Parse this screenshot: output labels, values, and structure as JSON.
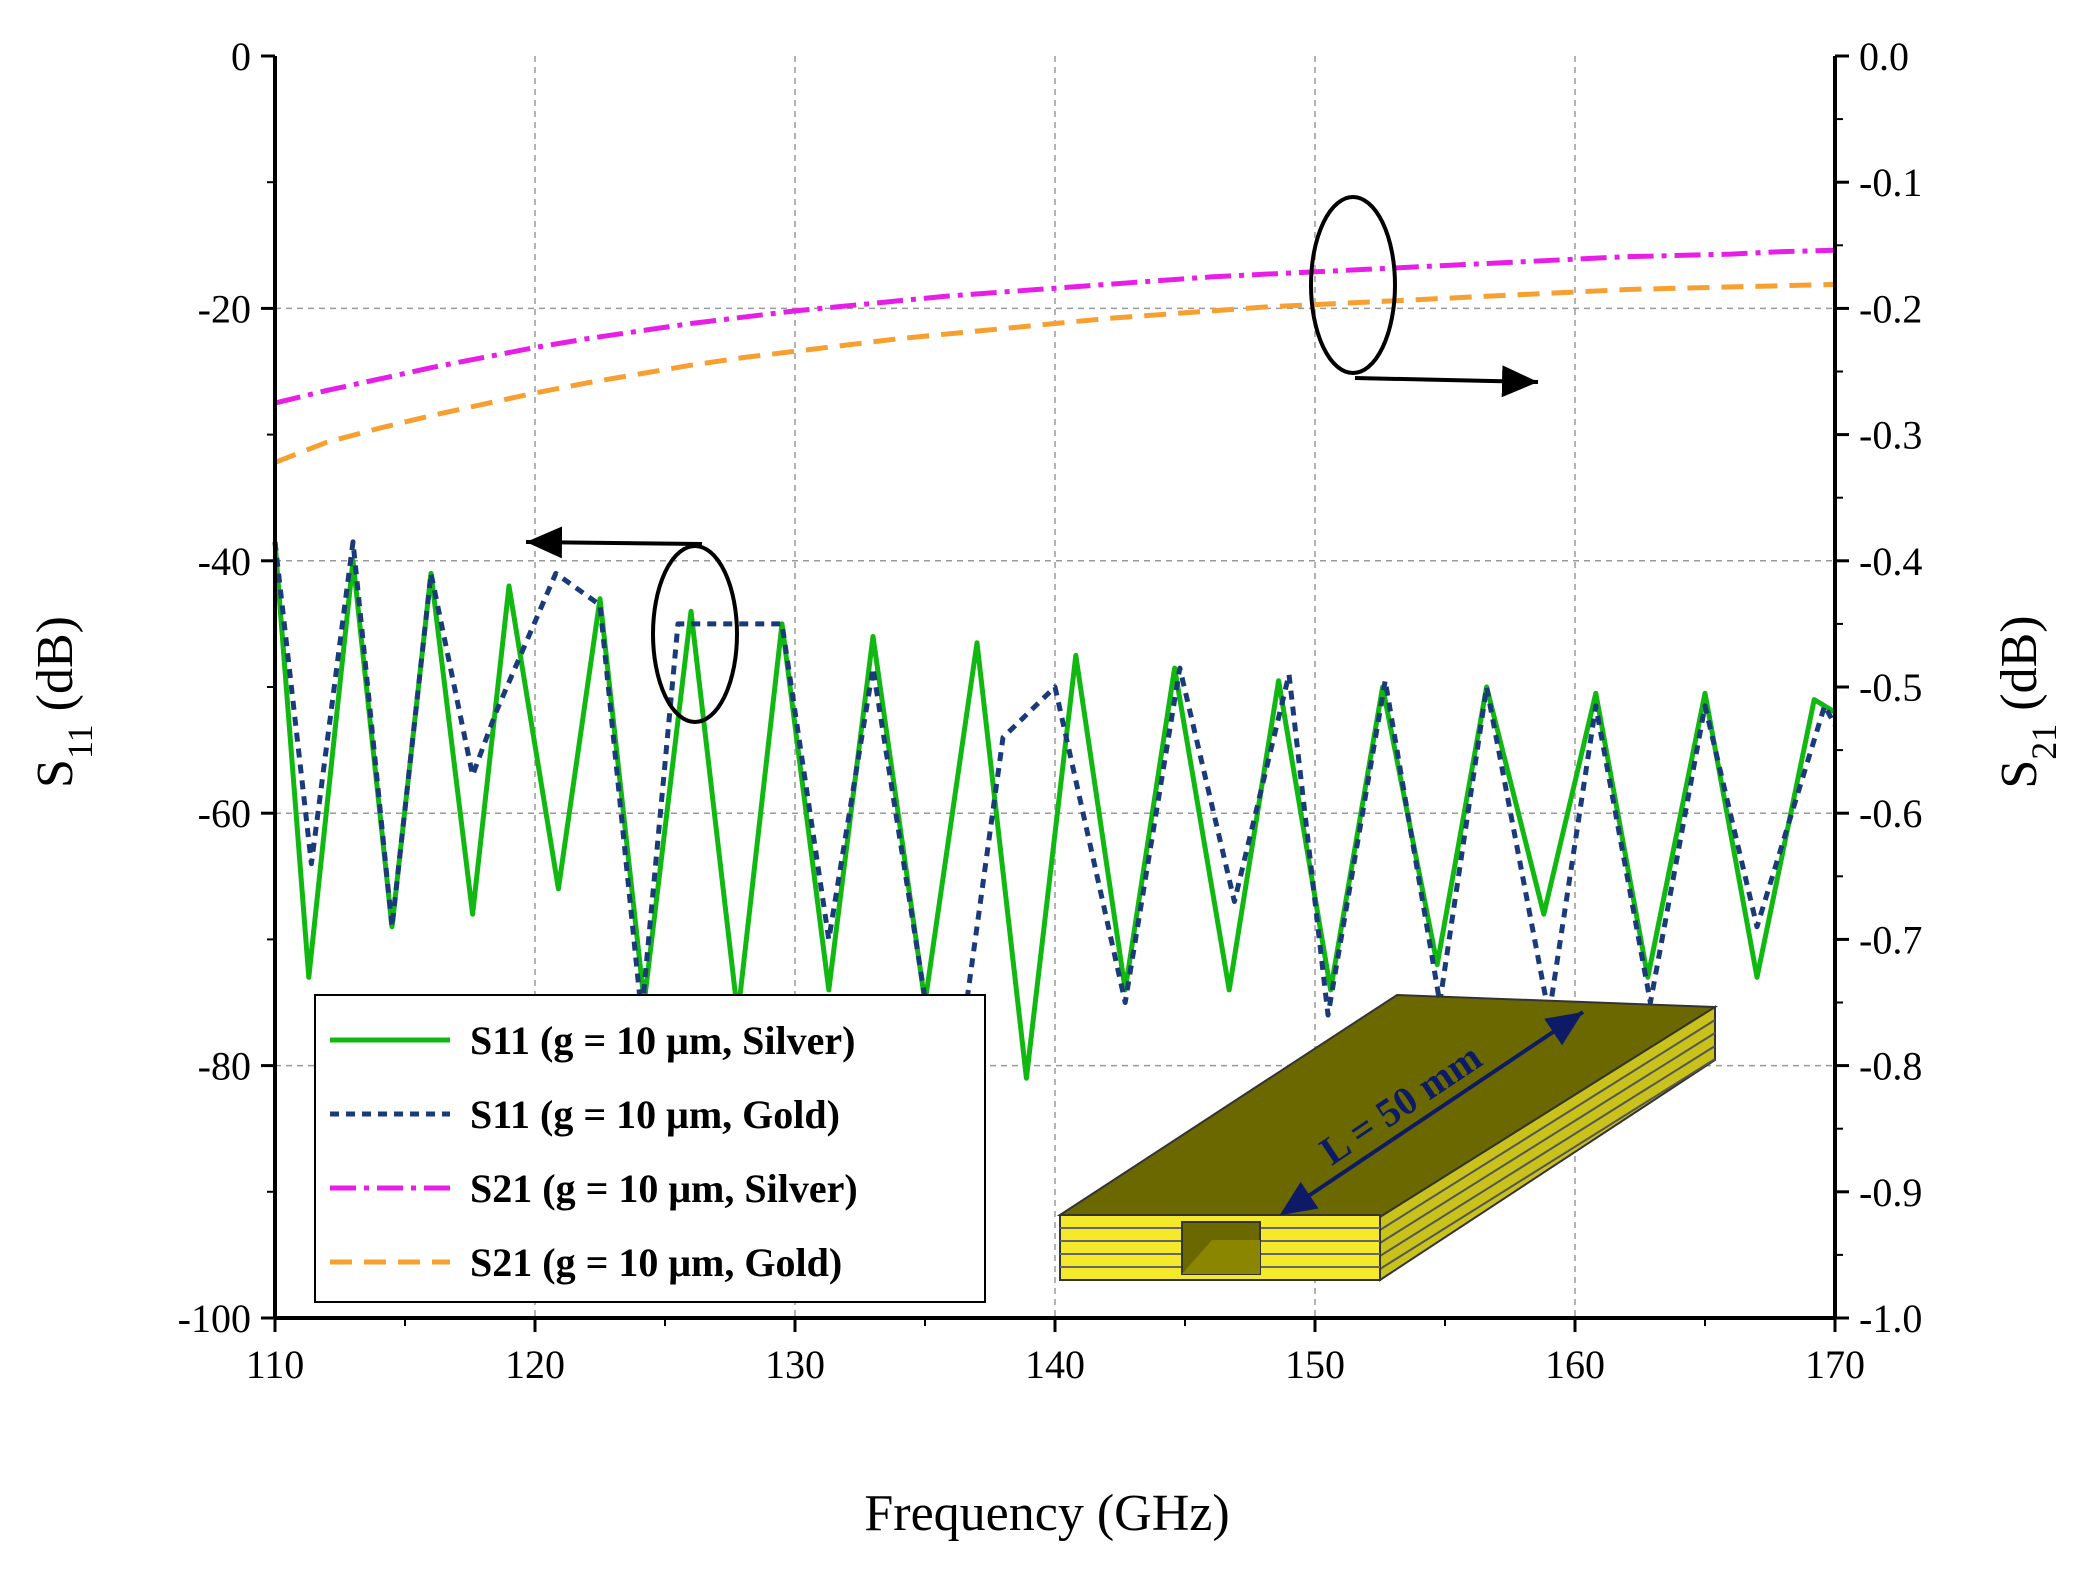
{
  "chart_data": {
    "type": "line",
    "title": "",
    "xlabel": "Frequency (GHz)",
    "ylabel_left": {
      "base": "S",
      "sub": "11",
      "unit": " (dB)"
    },
    "ylabel_right": {
      "base": "S",
      "sub": "21",
      "unit": " (dB)"
    },
    "xlim": [
      110,
      170
    ],
    "ylim_left": [
      -100,
      0
    ],
    "ylim_right": [
      -1.0,
      0.0
    ],
    "grid": true,
    "legend_position": "bottom-left",
    "x_ticks": [
      "110",
      "120",
      "130",
      "140",
      "150",
      "160",
      "170"
    ],
    "y_left_ticks": [
      "0",
      "-20",
      "-40",
      "-60",
      "-80",
      "-100"
    ],
    "y_right_ticks": [
      "0.0",
      "-0.1",
      "-0.2",
      "-0.3",
      "-0.4",
      "-0.5",
      "-0.6",
      "-0.7",
      "-0.8",
      "-0.9",
      "-1.0"
    ],
    "series": [
      {
        "name": "S11 (g = 10 μm, Silver)",
        "axis": "left",
        "color": "#11b811",
        "style": "solid",
        "x": [
          110,
          111.3,
          113,
          114.5,
          116,
          117.6,
          119,
          120.9,
          122.5,
          124.2,
          126,
          127.8,
          129.5,
          131.3,
          133,
          135,
          137,
          138.9,
          140.8,
          142.7,
          144.6,
          146.7,
          148.6,
          150.6,
          152.6,
          154.7,
          156.6,
          158.8,
          160.8,
          162.8,
          165,
          167,
          169.2,
          170
        ],
        "y": [
          -38.5,
          -73,
          -40,
          -69,
          -41,
          -68,
          -42,
          -66,
          -43,
          -75,
          -44,
          -76,
          -45,
          -74,
          -46,
          -75,
          -46.5,
          -81,
          -47.5,
          -74,
          -48.5,
          -74,
          -49.5,
          -74,
          -50,
          -72,
          -50,
          -68,
          -50.5,
          -73,
          -50.5,
          -73,
          -51,
          -52
        ]
      },
      {
        "name": "S11 (g = 10 μm, Gold)",
        "axis": "left",
        "color": "#1a3a7a",
        "style": "dashed",
        "x": [
          110,
          111.4,
          113,
          114.5,
          116,
          117.6,
          118.5,
          120.8,
          122.5,
          124.1,
          125.5,
          127,
          129.5,
          131.3,
          133,
          135.1,
          136.4,
          138,
          140,
          142.7,
          144.8,
          146.9,
          149,
          150.5,
          152.7,
          154.8,
          156.6,
          159,
          160.8,
          162.9,
          165,
          167,
          169.6,
          170
        ],
        "y": [
          -38.5,
          -64,
          -38.5,
          -69,
          -41,
          -57,
          -52,
          -41,
          -43.5,
          -76,
          -45,
          -45,
          -45,
          -70,
          -48.5,
          -76,
          -78,
          -54,
          -50,
          -75,
          -48.5,
          -67,
          -49,
          -76,
          -49.5,
          -75,
          -50,
          -76,
          -51.5,
          -75,
          -51.5,
          -69,
          -51.5,
          -53
        ]
      },
      {
        "name": "S21 (g = 10 μm, Silver)",
        "axis": "right",
        "color": "#e81ee8",
        "style": "dash-dot",
        "x": [
          110,
          111,
          112,
          114,
          116,
          118,
          120,
          122,
          124,
          126,
          128,
          130,
          132,
          134,
          136,
          138,
          140,
          142,
          144,
          146,
          148,
          150,
          152,
          154,
          156,
          158,
          160,
          162,
          164,
          166,
          168,
          170
        ],
        "y": [
          -0.275,
          -0.27,
          -0.265,
          -0.256,
          -0.247,
          -0.239,
          -0.231,
          -0.224,
          -0.218,
          -0.212,
          -0.207,
          -0.202,
          -0.198,
          -0.194,
          -0.19,
          -0.187,
          -0.184,
          -0.181,
          -0.178,
          -0.175,
          -0.173,
          -0.171,
          -0.169,
          -0.167,
          -0.165,
          -0.163,
          -0.161,
          -0.159,
          -0.158,
          -0.157,
          -0.155,
          -0.154
        ]
      },
      {
        "name": "S21 (g = 10 μm, Gold)",
        "axis": "right",
        "color": "#f7a030",
        "style": "dashed",
        "x": [
          110,
          111,
          112,
          114,
          116,
          118,
          120,
          122,
          124,
          126,
          128,
          130,
          132,
          134,
          136,
          138,
          140,
          142,
          144,
          146,
          148,
          150,
          152,
          154,
          156,
          158,
          160,
          162,
          164,
          166,
          168,
          170
        ],
        "y": [
          -0.322,
          -0.314,
          -0.306,
          -0.295,
          -0.285,
          -0.276,
          -0.267,
          -0.259,
          -0.252,
          -0.245,
          -0.239,
          -0.234,
          -0.229,
          -0.224,
          -0.22,
          -0.216,
          -0.212,
          -0.208,
          -0.205,
          -0.202,
          -0.199,
          -0.197,
          -0.195,
          -0.193,
          -0.191,
          -0.189,
          -0.187,
          -0.185,
          -0.184,
          -0.183,
          -0.182,
          -0.181
        ]
      }
    ],
    "annotations": {
      "inset_label": "L = 50 mm"
    }
  }
}
